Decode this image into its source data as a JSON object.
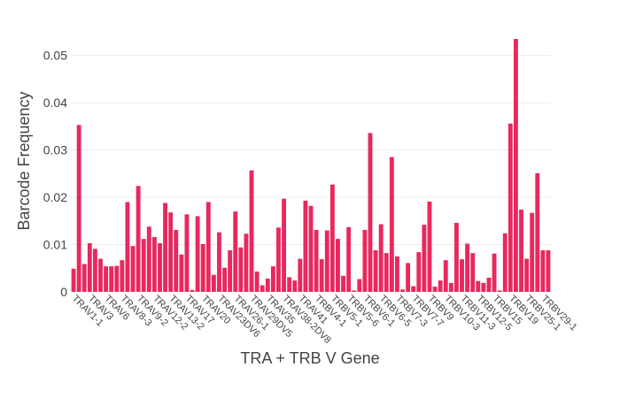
{
  "chart_data": {
    "type": "bar",
    "xlabel": "TRA + TRB V Gene",
    "ylabel": "Barcode Frequency",
    "ylim": [
      0,
      0.055
    ],
    "yticks": [
      0,
      0.01,
      0.02,
      0.03,
      0.04,
      0.05
    ],
    "ytick_labels": [
      "0",
      "0.01",
      "0.02",
      "0.03",
      "0.04",
      "0.05"
    ],
    "grid": true,
    "bar_color": "#e8285e",
    "tick_labels": [
      "TRAV1-1",
      "TRAV3",
      "TRAV6",
      "TRAV8-3",
      "TRAV9-2",
      "TRAV12-2",
      "TRAV13-2",
      "TRAV17",
      "TRAV20",
      "TRAV23DV6",
      "TRAV26-1",
      "TRAV29DV5",
      "TRAV35",
      "TRAV38-2DV8",
      "TRAV41",
      "TRBV4-1",
      "TRBV5-1",
      "TRBV5-6",
      "TRBV6-1",
      "TRBV6-5",
      "TRBV7-3",
      "TRBV7-7",
      "TRBV9",
      "TRBV10-3",
      "TRBV11-3",
      "TRBV12-5",
      "TRBV15",
      "TRBV19",
      "TRBV25-1",
      "TRBV29-1"
    ],
    "values": [
      0.0049,
      0.0353,
      0.0059,
      0.0103,
      0.0091,
      0.007,
      0.0054,
      0.0054,
      0.0055,
      0.0067,
      0.019,
      0.0097,
      0.0224,
      0.0112,
      0.0138,
      0.0116,
      0.0103,
      0.0188,
      0.0168,
      0.0131,
      0.0079,
      0.0164,
      0.0004,
      0.016,
      0.0101,
      0.019,
      0.0036,
      0.0126,
      0.0051,
      0.0088,
      0.017,
      0.0094,
      0.0123,
      0.0257,
      0.0043,
      0.0014,
      0.0028,
      0.0054,
      0.0136,
      0.0197,
      0.0031,
      0.0024,
      0.007,
      0.0193,
      0.0182,
      0.0131,
      0.0069,
      0.013,
      0.0227,
      0.0112,
      0.0034,
      0.0137,
      0.0003,
      0.0027,
      0.0131,
      0.0336,
      0.0088,
      0.0143,
      0.0082,
      0.0285,
      0.0075,
      0.0005,
      0.0061,
      0.0012,
      0.0084,
      0.0142,
      0.0191,
      0.0011,
      0.0024,
      0.0067,
      0.0019,
      0.0146,
      0.0069,
      0.0102,
      0.0082,
      0.0023,
      0.0019,
      0.003,
      0.0081,
      0.0003,
      0.0124,
      0.0356,
      0.0535,
      0.0174,
      0.007,
      0.0167,
      0.0251,
      0.0088,
      0.0088
    ]
  }
}
